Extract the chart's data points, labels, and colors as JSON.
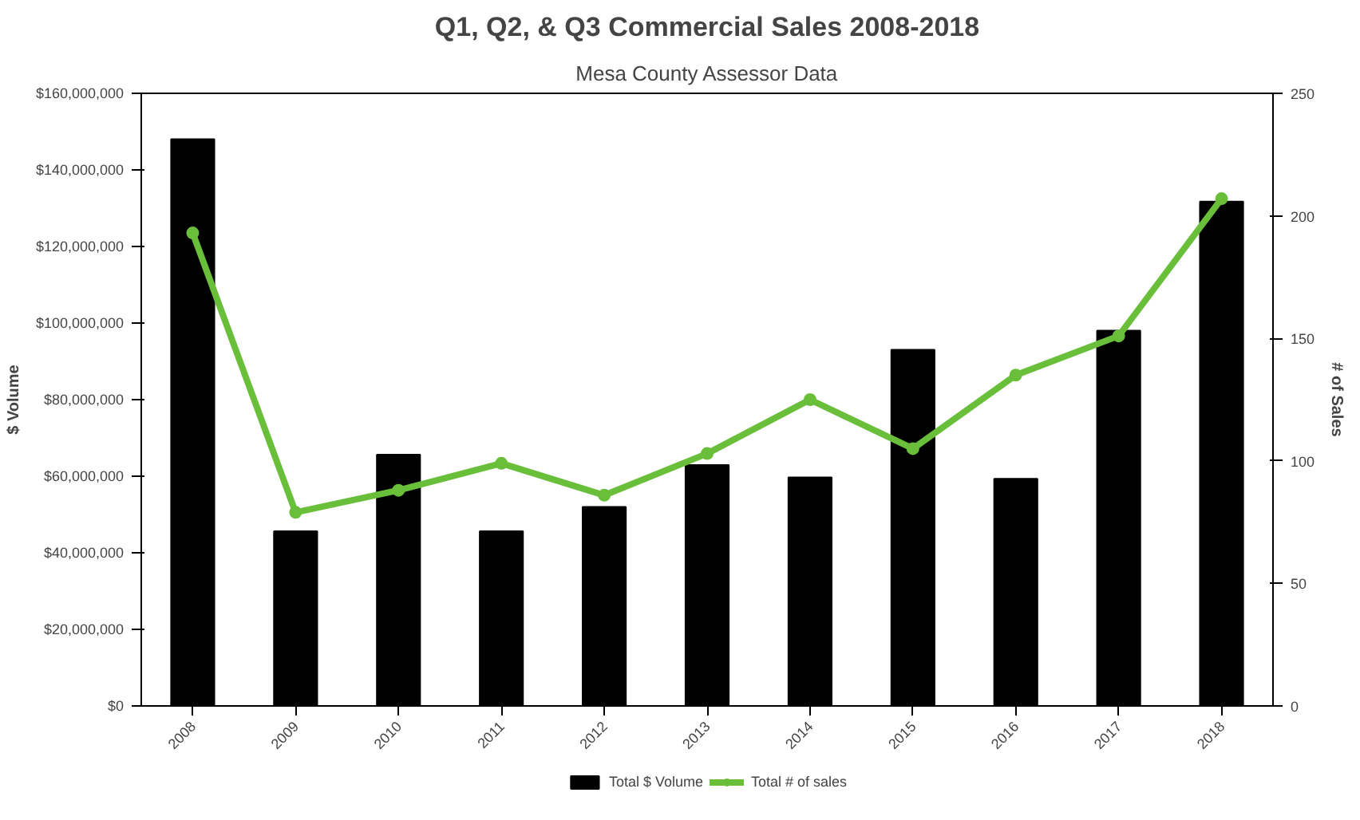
{
  "chart_data": {
    "type": "bar",
    "title": "Q1, Q2, & Q3 Commercial Sales 2008-2018",
    "subtitle": "Mesa County Assessor Data",
    "ylabel": "$ Volume",
    "y2label": "# of Sales",
    "categories": [
      "2008",
      "2009",
      "2010",
      "2011",
      "2012",
      "2013",
      "2014",
      "2015",
      "2016",
      "2017",
      "2018"
    ],
    "series": [
      {
        "name": "Total $ Volume",
        "color": "#000000",
        "values": [
          148000000,
          45600000,
          65600000,
          45600000,
          52000000,
          62900000,
          59700000,
          93000000,
          59300000,
          98000000,
          131700000
        ]
      },
      {
        "name": "Total # of sales",
        "type": "line",
        "axis": "y2",
        "color": "#6abf3a",
        "marker": "circle",
        "values": [
          193,
          79,
          88,
          99,
          86,
          103,
          125,
          105,
          135,
          151,
          207
        ]
      }
    ],
    "ylim": [
      0,
      160000000
    ],
    "yticks": [
      {
        "value": 0,
        "label": "$0"
      },
      {
        "value": 20000000,
        "label": "$20,000,000"
      },
      {
        "value": 40000000,
        "label": "$40,000,000"
      },
      {
        "value": 60000000,
        "label": "$60,000,000"
      },
      {
        "value": 80000000,
        "label": "$80,000,000"
      },
      {
        "value": 100000000,
        "label": "$100,000,000"
      },
      {
        "value": 120000000,
        "label": "$120,000,000"
      },
      {
        "value": 140000000,
        "label": "$140,000,000"
      },
      {
        "value": 160000000,
        "label": "$160,000,000"
      }
    ],
    "y2lim": [
      0,
      250
    ],
    "y2ticks": [
      0,
      50,
      100,
      150,
      200,
      250
    ],
    "grid": false,
    "legend": "bottom"
  }
}
